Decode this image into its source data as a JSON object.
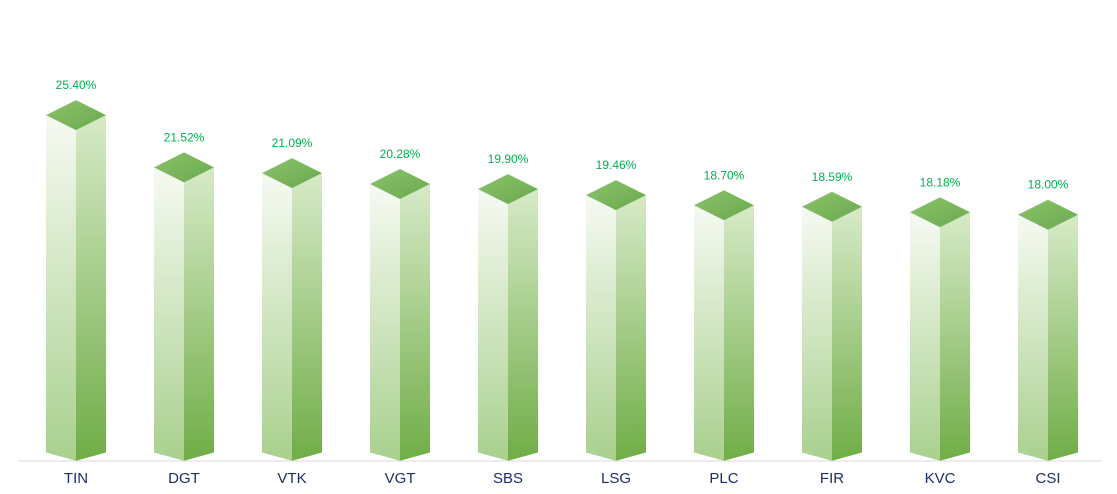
{
  "chart_data": {
    "type": "bar",
    "style": "3d-column",
    "title": "",
    "xlabel": "",
    "ylabel": "",
    "categories": [
      "TIN",
      "DGT",
      "VTK",
      "VGT",
      "SBS",
      "LSG",
      "PLC",
      "FIR",
      "KVC",
      "CSI"
    ],
    "values": [
      25.4,
      21.52,
      21.09,
      20.28,
      19.9,
      19.46,
      18.7,
      18.59,
      18.18,
      18.0
    ],
    "data_labels": [
      "25.40%",
      "21.52%",
      "21.09%",
      "20.28%",
      "19.90%",
      "19.46%",
      "18.70%",
      "18.59%",
      "18.18%",
      "18.00%"
    ],
    "ylim": [
      0,
      26.5
    ],
    "grid": false,
    "legend": "none",
    "colors": {
      "bar_front_top": "#f6faf2",
      "bar_front_bottom": "#a9d08e",
      "bar_side_top": "#d7eac8",
      "bar_side_bottom": "#70ad47",
      "bar_top_face": "#6aa84f",
      "label_color": "#00b050",
      "category_color": "#1f2d6b",
      "axis_color": "#d9d9d9"
    }
  }
}
